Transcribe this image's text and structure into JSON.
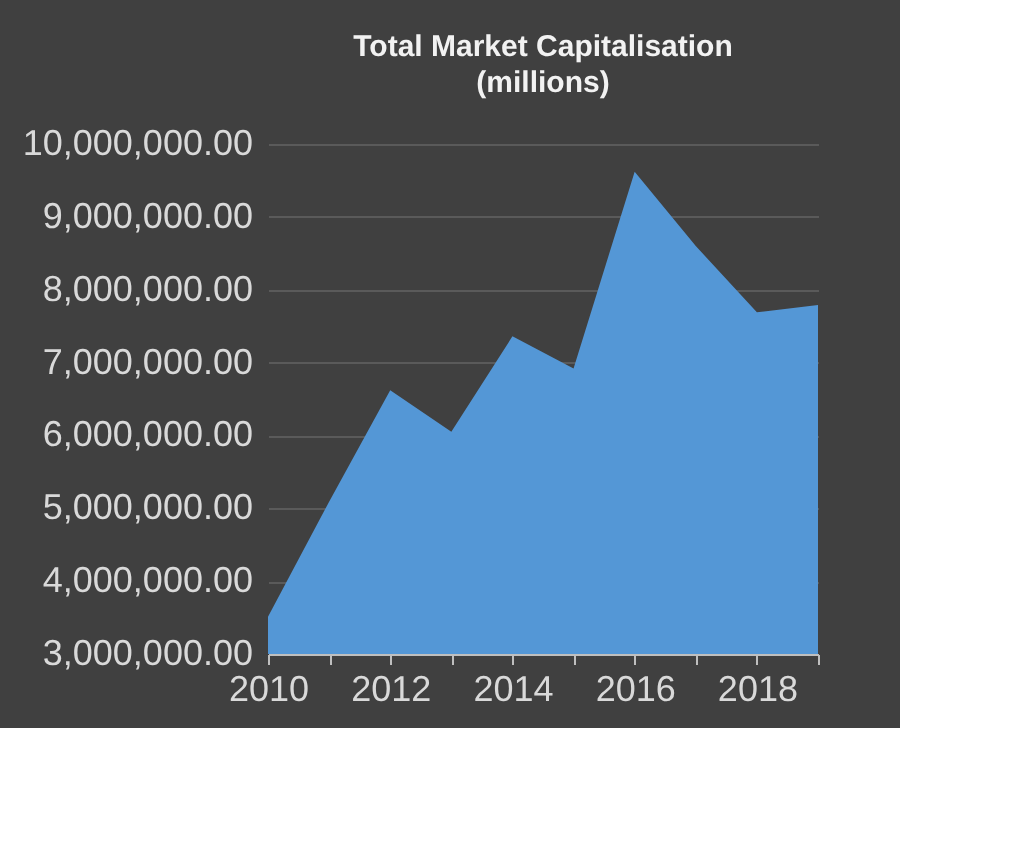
{
  "chart_data": {
    "type": "area",
    "title": "Total Market Capitalisation",
    "subtitle": "(millions)",
    "x": [
      2010,
      2011,
      2012,
      2013,
      2014,
      2015,
      2016,
      2017,
      2018,
      2019
    ],
    "series": [
      {
        "color": "#5497d6",
        "values": [
          3510000,
          5090000,
          6620000,
          6050000,
          7360000,
          6920000,
          9620000,
          8600000,
          7690000,
          7790000
        ]
      }
    ],
    "xlim": [
      2010,
      2019
    ],
    "xticks": [
      2010,
      {
        "value": 2011,
        "label": null
      },
      2012,
      {
        "value": 2013,
        "label": null
      },
      2014,
      {
        "value": 2015,
        "label": null
      },
      2016,
      {
        "value": 2017,
        "label": null
      },
      2018,
      {
        "value": 2019,
        "label": null
      }
    ],
    "ylim": [
      3000000,
      10000000
    ],
    "yticks": [
      {
        "value": 3000000,
        "label": "3,000,000.00"
      },
      {
        "value": 4000000,
        "label": "4,000,000.00"
      },
      {
        "value": 5000000,
        "label": "5,000,000.00"
      },
      {
        "value": 6000000,
        "label": "6,000,000.00"
      },
      {
        "value": 7000000,
        "label": "7,000,000.00"
      },
      {
        "value": 8000000,
        "label": "8,000,000.00"
      },
      {
        "value": 9000000,
        "label": "9,000,000.00"
      },
      {
        "value": 10000000,
        "label": "10,000,000.00"
      }
    ],
    "grid": "y",
    "legend": false
  }
}
